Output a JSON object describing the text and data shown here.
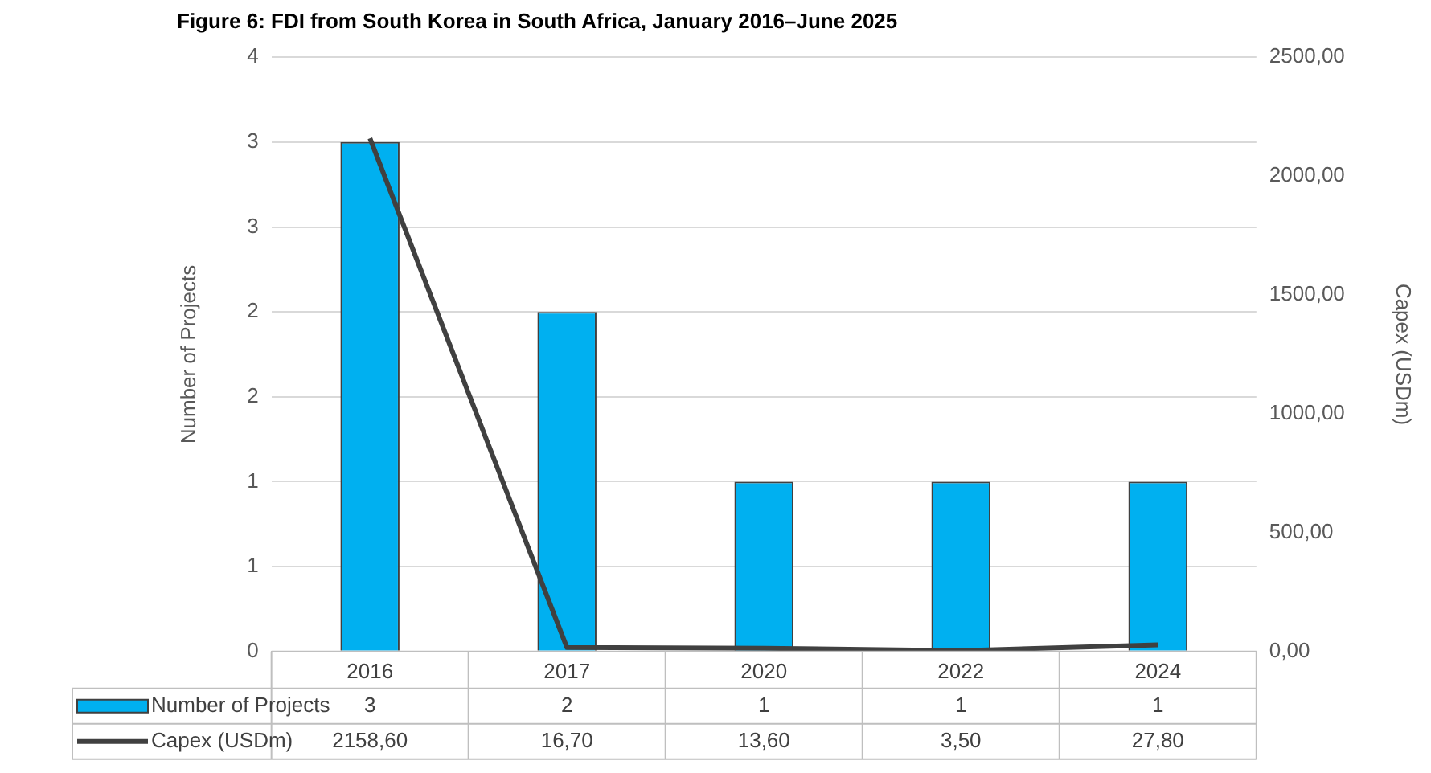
{
  "chart_data": {
    "type": "bar",
    "title": "Figure 6: FDI from South Korea in South Africa, January 2016–June 2025",
    "ylabel": "Number of Projects",
    "y2label": "Capex (USDm)",
    "categories": [
      "2016",
      "2017",
      "2020",
      "2022",
      "2024"
    ],
    "series": [
      {
        "name": "Number of Projects",
        "color": "#00b0f0",
        "values": [
          3,
          2,
          1,
          1,
          1
        ],
        "value_labels": [
          "3",
          "2",
          "1",
          "1",
          "1"
        ]
      },
      {
        "name": "Capex (USDm)",
        "type": "line",
        "axis": "y2",
        "color": "#404040",
        "values": [
          2158.6,
          16.7,
          13.6,
          3.5,
          27.8
        ],
        "value_labels": [
          "2158,60",
          "16,70",
          "13,60",
          "3,50",
          "27,80"
        ]
      }
    ],
    "ylim": [
      0,
      3.5
    ],
    "yticks": [
      0,
      {
        "value": 0.5,
        "label": "1"
      },
      1,
      {
        "value": 1.5,
        "label": "2"
      },
      2,
      {
        "value": 2.5,
        "label": "3"
      },
      3,
      {
        "value": 3.5,
        "label": "4"
      }
    ],
    "y2lim": [
      0,
      2500
    ],
    "y2ticks": [
      {
        "value": 0,
        "label": "0,00"
      },
      {
        "value": 500,
        "label": "500,00"
      },
      {
        "value": 1000,
        "label": "1000,00"
      },
      {
        "value": 1500,
        "label": "1500,00"
      },
      {
        "value": 2000,
        "label": "2000,00"
      },
      {
        "value": 2500,
        "label": "2500,00"
      }
    ],
    "grid": "y",
    "legend": "bottom",
    "marker": "none",
    "line_style": "solid"
  }
}
